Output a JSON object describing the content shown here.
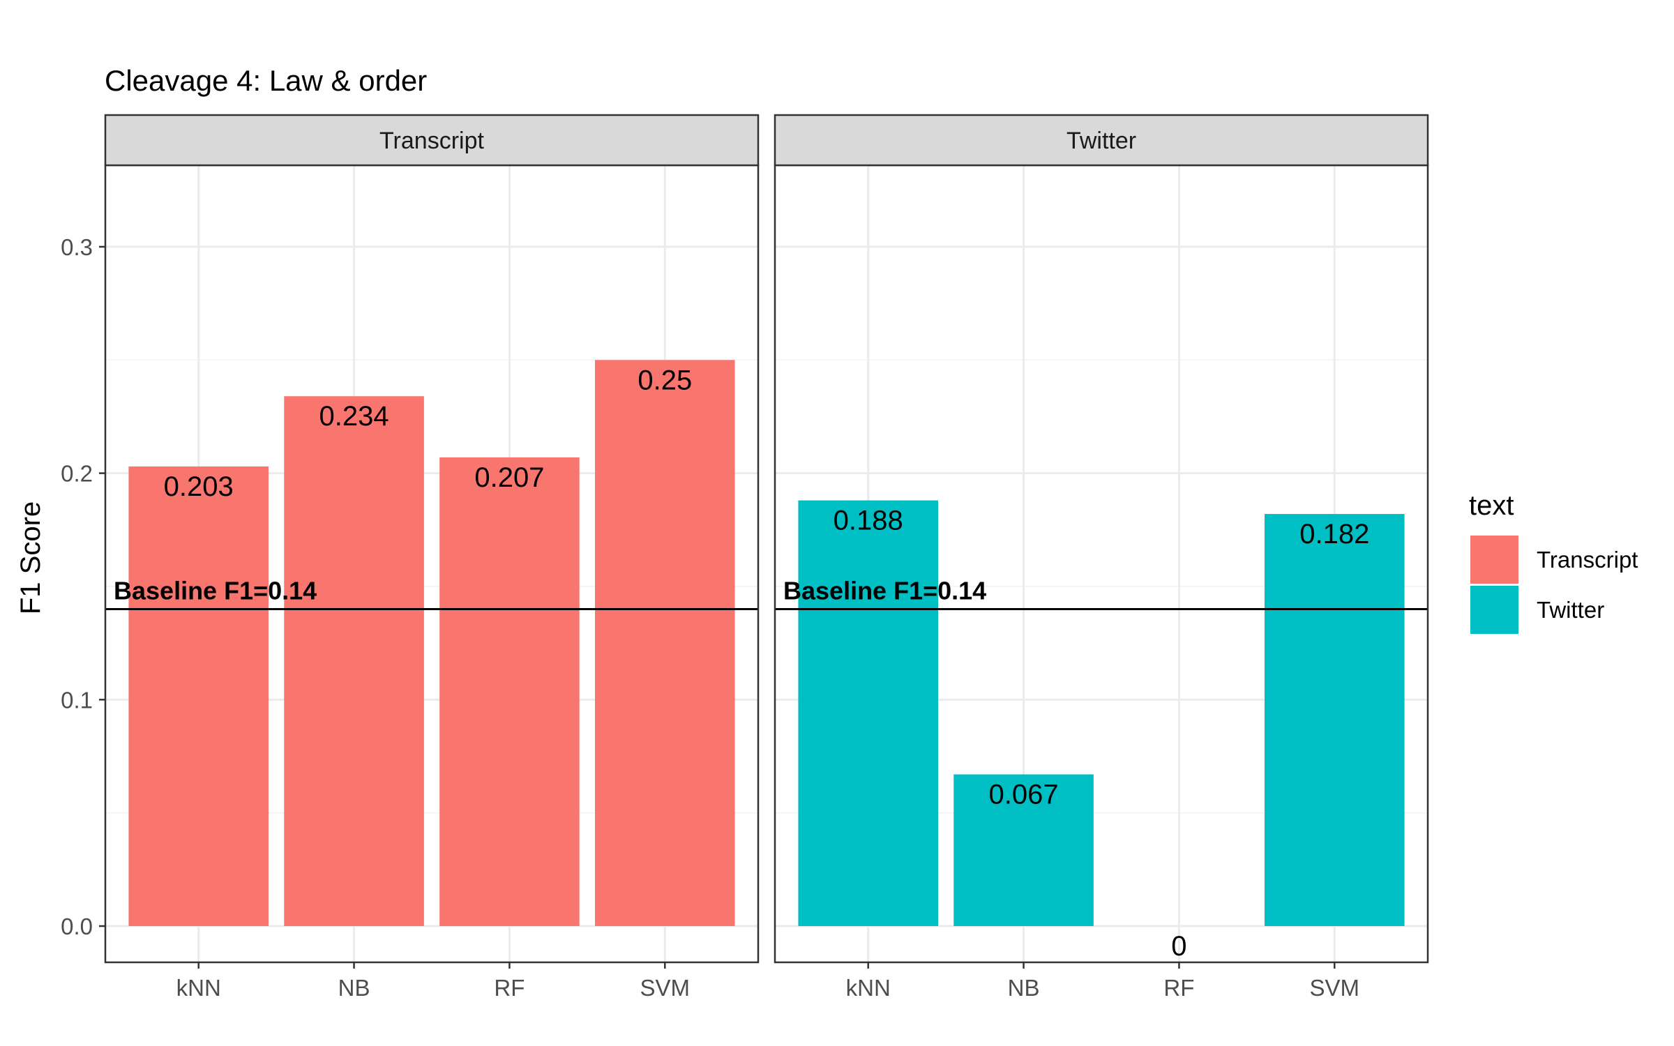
{
  "chart_data": {
    "type": "bar",
    "title": "Cleavage 4: Law & order",
    "ylabel": "F1 Score",
    "xlabel": "",
    "ylim": [
      -0.016,
      0.336
    ],
    "yticks": [
      0.0,
      0.1,
      0.2,
      0.3
    ],
    "ytick_labels": [
      "0.0",
      "0.1",
      "0.2",
      "0.3"
    ],
    "grid": true,
    "categories": [
      "kNN",
      "NB",
      "RF",
      "SVM"
    ],
    "baseline": {
      "value": 0.14,
      "label": "Baseline F1=0.14"
    },
    "legend": {
      "title": "text",
      "position": "right",
      "items": [
        {
          "label": "Transcript",
          "color": "#F8766D"
        },
        {
          "label": "Twitter",
          "color": "#00BFC4"
        }
      ]
    },
    "facets": [
      {
        "strip": "Transcript",
        "color": "#F8766D",
        "values": [
          0.203,
          0.234,
          0.207,
          0.25
        ],
        "labels": [
          "0.203",
          "0.234",
          "0.207",
          "0.25"
        ]
      },
      {
        "strip": "Twitter",
        "color": "#00BFC4",
        "values": [
          0.188,
          0.067,
          0,
          0.182
        ],
        "labels": [
          "0.188",
          "0.067",
          "0",
          "0.182"
        ]
      }
    ]
  }
}
